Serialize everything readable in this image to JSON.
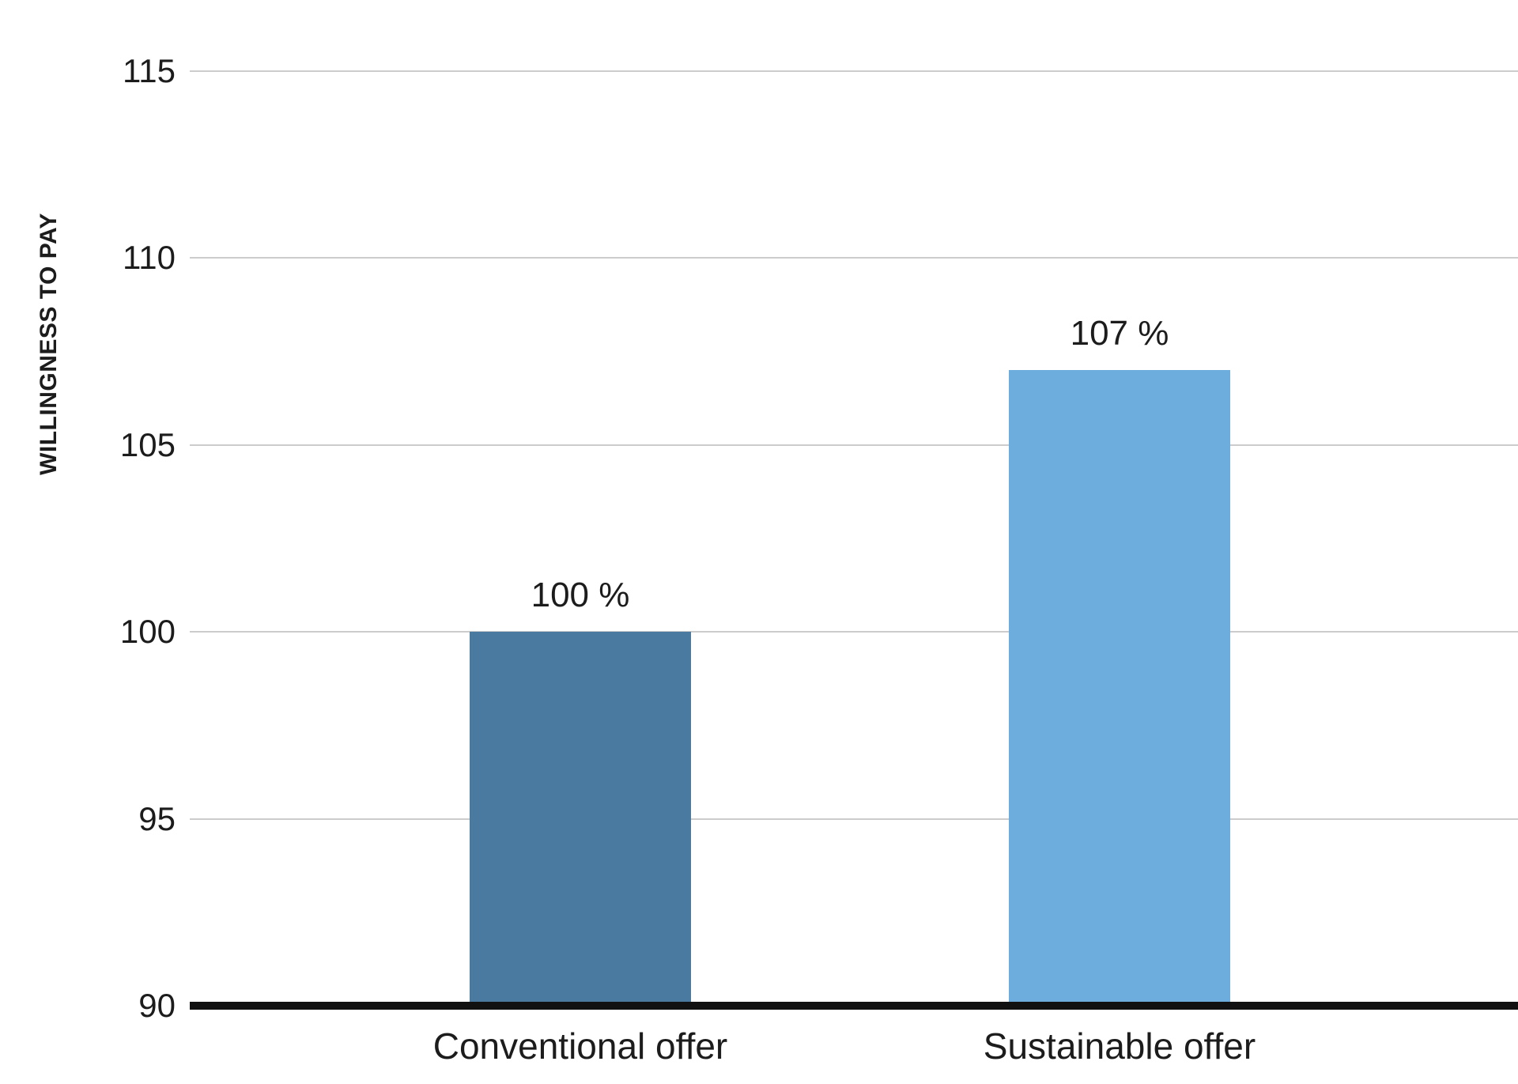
{
  "chart_data": {
    "type": "bar",
    "title": "",
    "xlabel": "",
    "ylabel": "WILLINGNESS TO PAY",
    "categories": [
      "Conventional offer",
      "Sustainable offer"
    ],
    "values": [
      100,
      107
    ],
    "value_labels": [
      "100 %",
      "107 %"
    ],
    "bar_colors": [
      "#4a7aa0",
      "#6cadde"
    ],
    "ylim": [
      90,
      115
    ],
    "yticks": [
      90,
      95,
      100,
      105,
      110,
      115
    ],
    "grid": true,
    "gridline_color": "#cccccc",
    "baseline_color": "#111111",
    "text_color": "#1c1c1c",
    "background": "#ffffff",
    "legend": "none"
  }
}
